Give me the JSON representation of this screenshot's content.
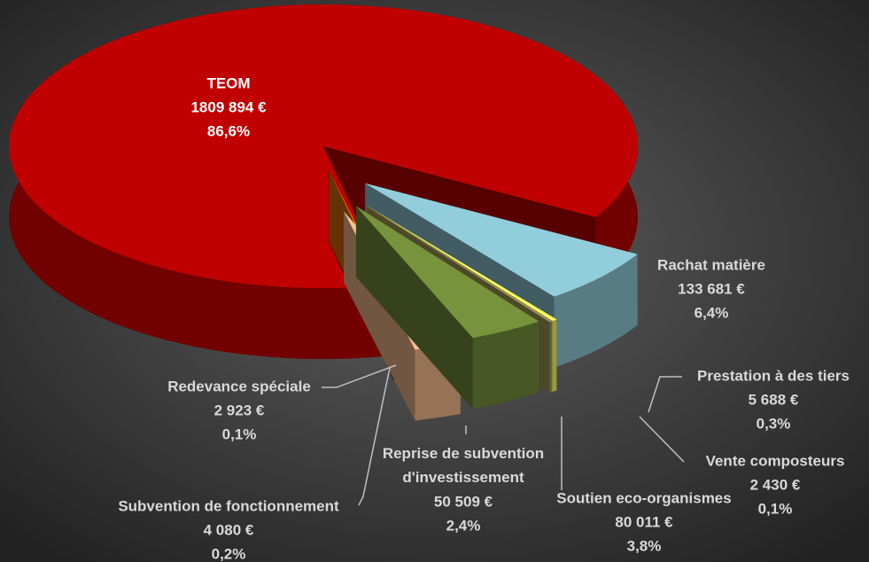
{
  "chart_data": {
    "type": "pie",
    "categories": [
      "TEOM",
      "Rachat matière",
      "Prestation à des tiers",
      "Vente composteurs",
      "Soutien eco-organismes",
      "Reprise de subvention d'investissement",
      "Subvention de fonctionnement",
      "Redevance spéciale"
    ],
    "values": [
      1809894,
      133681,
      5688,
      2430,
      80011,
      50509,
      4080,
      2923
    ],
    "value_labels": [
      "1809 894 €",
      "133 681 €",
      "5 688 €",
      "2 430 €",
      "80 011 €",
      "50 509 €",
      "4 080 €",
      "2 923 €"
    ],
    "percentages": [
      86.6,
      6.4,
      0.3,
      0.1,
      3.8,
      2.4,
      0.2,
      0.1
    ],
    "percentage_labels": [
      "86,6%",
      "6,4%",
      "0,3%",
      "0,1%",
      "3,8%",
      "2,4%",
      "0,2%",
      "0,1%"
    ],
    "colors": [
      "#c00000",
      "#92cddc",
      "#ffff66",
      "#a6a35c",
      "#77933c",
      "#fac090",
      "#e46c0a",
      "#2b2b2b"
    ]
  }
}
